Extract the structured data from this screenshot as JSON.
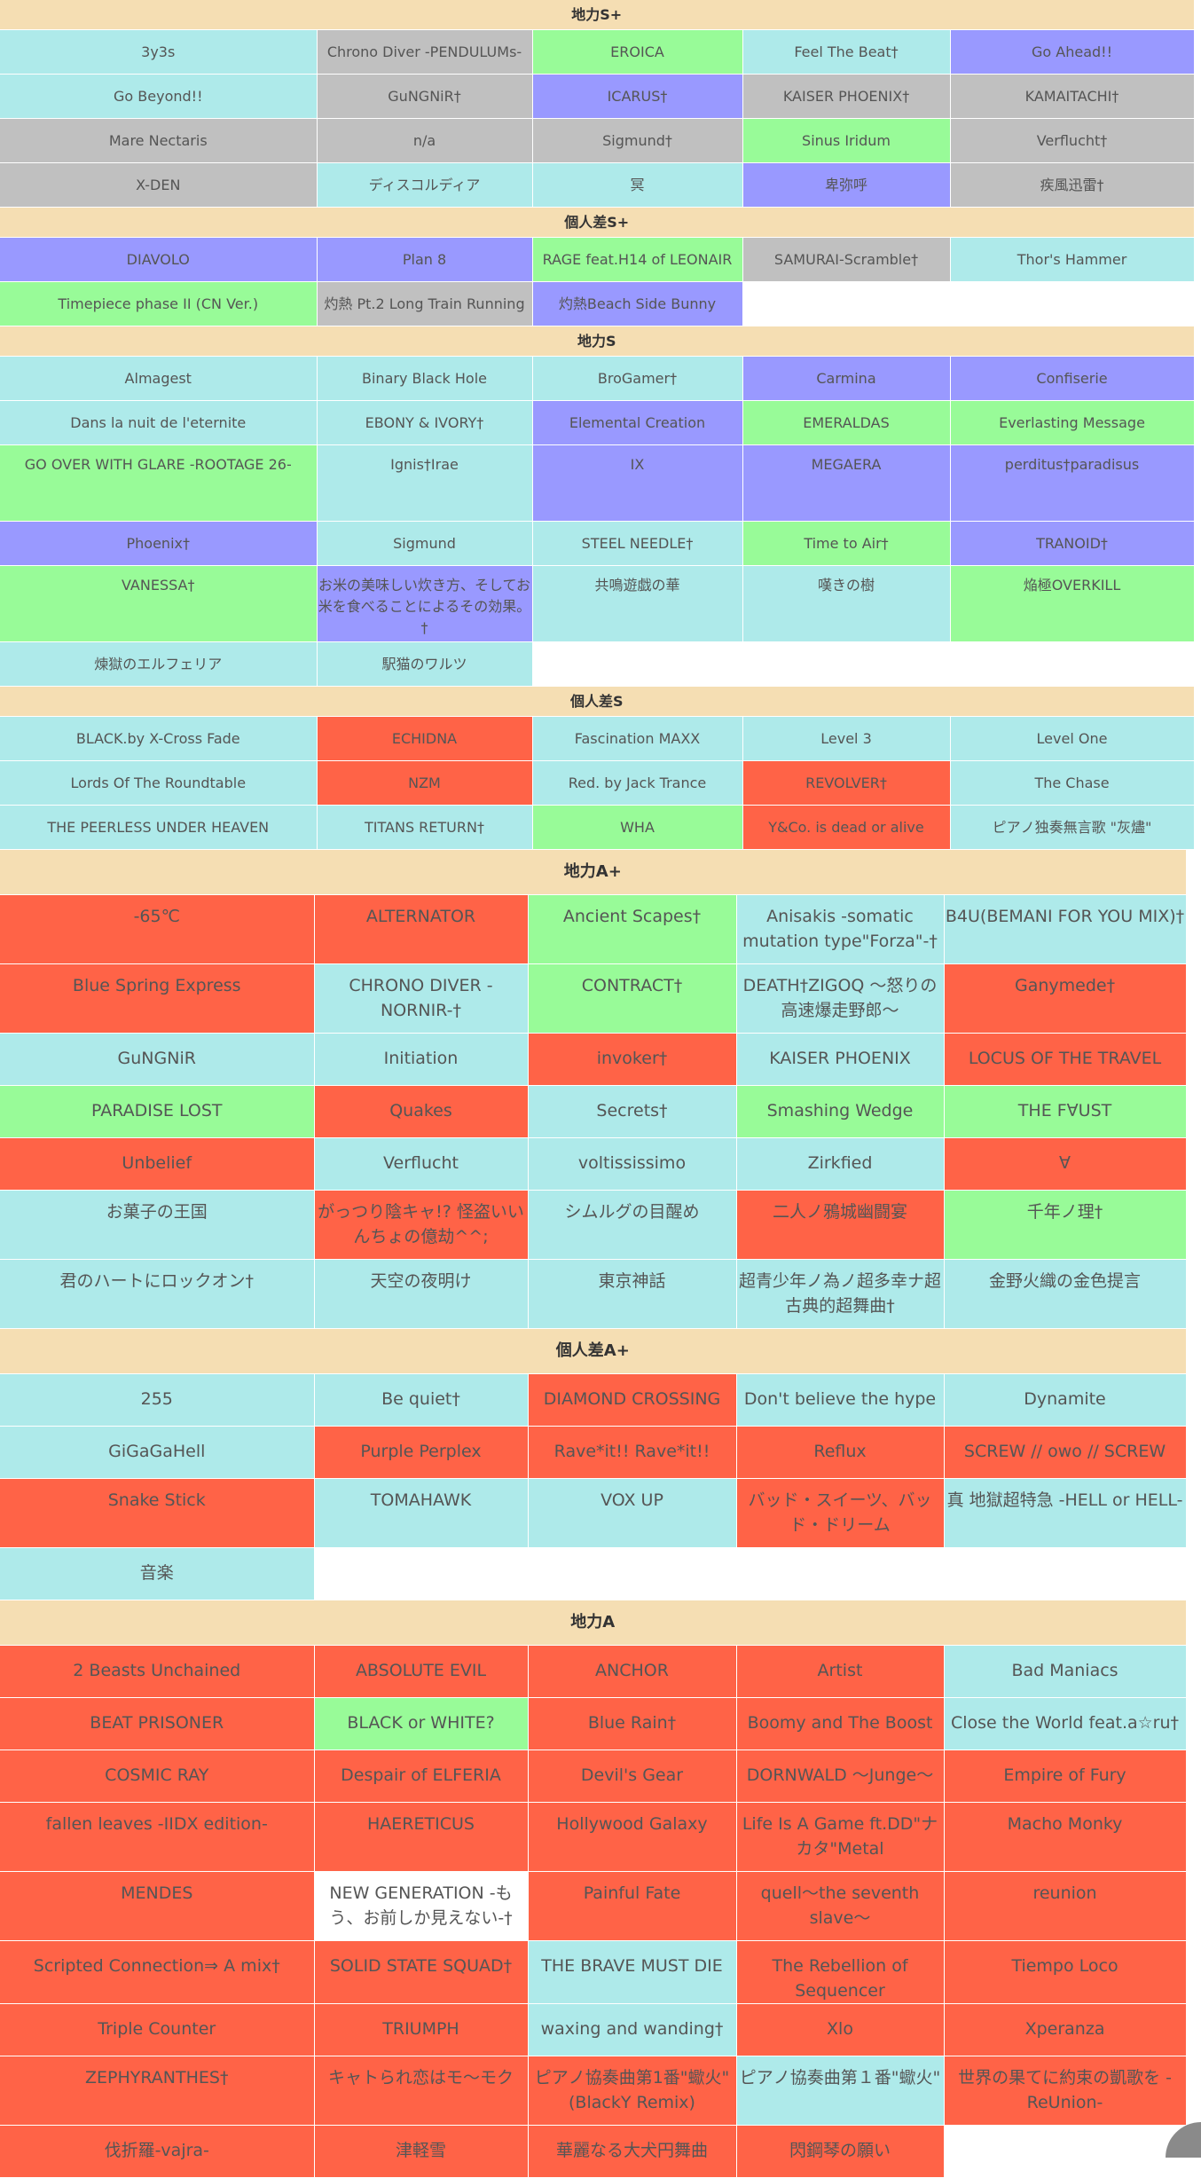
{
  "sections_top": [
    {
      "title": "地力S+",
      "rows": [
        [
          {
            "t": "3y3s",
            "c": "blue"
          },
          {
            "t": "Chrono Diver -PENDULUMs-",
            "c": "grey"
          },
          {
            "t": "EROICA",
            "c": "green"
          },
          {
            "t": "Feel The Beat†",
            "c": "blue"
          },
          {
            "t": "Go Ahead!!",
            "c": "purple"
          }
        ],
        [
          {
            "t": "Go Beyond!!",
            "c": "blue"
          },
          {
            "t": "GuNGNiR†",
            "c": "grey"
          },
          {
            "t": "ICARUS†",
            "c": "purple"
          },
          {
            "t": "KAISER PHOENIX†",
            "c": "grey"
          },
          {
            "t": "KAMAITACHI†",
            "c": "grey"
          }
        ],
        [
          {
            "t": "Mare Nectaris",
            "c": "grey"
          },
          {
            "t": "n/a",
            "c": "grey"
          },
          {
            "t": "Sigmund†",
            "c": "grey"
          },
          {
            "t": "Sinus Iridum",
            "c": "green"
          },
          {
            "t": "Verflucht†",
            "c": "grey"
          }
        ],
        [
          {
            "t": "X-DEN",
            "c": "grey"
          },
          {
            "t": "ディスコルディア",
            "c": "blue"
          },
          {
            "t": "冥",
            "c": "blue"
          },
          {
            "t": "卑弥呼",
            "c": "purple"
          },
          {
            "t": "疾風迅雷†",
            "c": "grey"
          }
        ]
      ]
    },
    {
      "title": "個人差S+",
      "rows": [
        [
          {
            "t": "DIAVOLO",
            "c": "purple"
          },
          {
            "t": "Plan 8",
            "c": "purple"
          },
          {
            "t": "RAGE feat.H14 of LEONAIR",
            "c": "green"
          },
          {
            "t": "SAMURAI-Scramble†",
            "c": "grey"
          },
          {
            "t": "Thor's Hammer",
            "c": "blue"
          }
        ],
        [
          {
            "t": "Timepiece phase II (CN Ver.)",
            "c": "green"
          },
          {
            "t": "灼熱 Pt.2 Long Train Running",
            "c": "grey"
          },
          {
            "t": "灼熱Beach Side Bunny",
            "c": "purple"
          },
          {
            "t": "",
            "c": "empty"
          },
          {
            "t": "",
            "c": "empty"
          }
        ]
      ]
    },
    {
      "title": "地力S",
      "rows": [
        [
          {
            "t": "Almagest",
            "c": "blue"
          },
          {
            "t": "Binary Black Hole",
            "c": "blue"
          },
          {
            "t": "BroGamer†",
            "c": "blue"
          },
          {
            "t": "Carmina",
            "c": "purple"
          },
          {
            "t": "Confiserie",
            "c": "purple"
          }
        ],
        [
          {
            "t": "Dans la nuit de l'eternite",
            "c": "blue"
          },
          {
            "t": "EBONY & IVORY†",
            "c": "blue"
          },
          {
            "t": "Elemental Creation",
            "c": "purple"
          },
          {
            "t": "EMERALDAS",
            "c": "green"
          },
          {
            "t": "Everlasting Message",
            "c": "green"
          }
        ],
        [
          {
            "t": "GO OVER WITH GLARE -ROOTAGE 26-",
            "c": "green"
          },
          {
            "t": "Ignis†Irae",
            "c": "blue"
          },
          {
            "t": "IX",
            "c": "purple"
          },
          {
            "t": "MEGAERA",
            "c": "purple"
          },
          {
            "t": "perditus†paradisus",
            "c": "purple"
          }
        ],
        [
          {
            "t": "Phoenix†",
            "c": "purple"
          },
          {
            "t": "Sigmund",
            "c": "blue"
          },
          {
            "t": "STEEL NEEDLE†",
            "c": "blue"
          },
          {
            "t": "Time to Air†",
            "c": "green"
          },
          {
            "t": "TRANOID†",
            "c": "purple"
          }
        ],
        [
          {
            "t": "VANESSA†",
            "c": "green"
          },
          {
            "t": "お米の美味しい炊き方、そしてお米を食べることによるその効果。†",
            "c": "purple"
          },
          {
            "t": "共鳴遊戯の華",
            "c": "blue"
          },
          {
            "t": "嘆きの樹",
            "c": "blue"
          },
          {
            "t": "焔極OVERKILL",
            "c": "green"
          }
        ],
        [
          {
            "t": "煉獄のエルフェリア",
            "c": "blue"
          },
          {
            "t": "駅猫のワルツ",
            "c": "blue"
          },
          {
            "t": "",
            "c": "empty"
          },
          {
            "t": "",
            "c": "empty"
          },
          {
            "t": "",
            "c": "empty"
          }
        ]
      ]
    },
    {
      "title": "個人差S",
      "rows": [
        [
          {
            "t": "BLACK.by X-Cross Fade",
            "c": "blue"
          },
          {
            "t": "ECHIDNA",
            "c": "red"
          },
          {
            "t": "Fascination MAXX",
            "c": "blue"
          },
          {
            "t": "Level 3",
            "c": "blue"
          },
          {
            "t": "Level One",
            "c": "blue"
          }
        ],
        [
          {
            "t": "Lords Of The Roundtable",
            "c": "blue"
          },
          {
            "t": "NZM",
            "c": "red"
          },
          {
            "t": "Red. by Jack Trance",
            "c": "blue"
          },
          {
            "t": "REVOLVER†",
            "c": "red"
          },
          {
            "t": "The Chase",
            "c": "blue"
          }
        ],
        [
          {
            "t": "THE PEERLESS UNDER HEAVEN",
            "c": "blue"
          },
          {
            "t": "TITANS RETURN†",
            "c": "blue"
          },
          {
            "t": "WHA",
            "c": "green"
          },
          {
            "t": "Y&Co. is dead or alive",
            "c": "red"
          },
          {
            "t": "ピアノ独奏無言歌 \"灰燼\"",
            "c": "blue"
          }
        ]
      ]
    }
  ],
  "sections_bottom": [
    {
      "title": "地力A+",
      "rows": [
        [
          {
            "t": "-65℃",
            "c": "red"
          },
          {
            "t": "ALTERNATOR",
            "c": "red"
          },
          {
            "t": "Ancient Scapes†",
            "c": "green"
          },
          {
            "t": "Anisakis -somatic mutation type\"Forza\"-†",
            "c": "blue"
          },
          {
            "t": "B4U(BEMANI FOR YOU MIX)†",
            "c": "blue"
          }
        ],
        [
          {
            "t": "Blue Spring Express",
            "c": "red"
          },
          {
            "t": "CHRONO DIVER -NORNIR-†",
            "c": "blue"
          },
          {
            "t": "CONTRACT†",
            "c": "green"
          },
          {
            "t": "DEATH†ZIGOQ ～怒りの高速爆走野郎～",
            "c": "blue"
          },
          {
            "t": "Ganymede†",
            "c": "red"
          }
        ],
        [
          {
            "t": "GuNGNiR",
            "c": "blue"
          },
          {
            "t": "Initiation",
            "c": "blue"
          },
          {
            "t": "invoker†",
            "c": "red"
          },
          {
            "t": "KAISER PHOENIX",
            "c": "blue"
          },
          {
            "t": "LOCUS OF THE TRAVEL",
            "c": "red"
          }
        ],
        [
          {
            "t": "PARADISE LOST",
            "c": "green"
          },
          {
            "t": "Quakes",
            "c": "red"
          },
          {
            "t": "Secrets†",
            "c": "blue"
          },
          {
            "t": "Smashing Wedge",
            "c": "green"
          },
          {
            "t": "THE F∀UST",
            "c": "green"
          }
        ],
        [
          {
            "t": "Unbelief",
            "c": "red"
          },
          {
            "t": "Verflucht",
            "c": "blue"
          },
          {
            "t": "voltississimo",
            "c": "blue"
          },
          {
            "t": "Zirkfied",
            "c": "blue"
          },
          {
            "t": "∀",
            "c": "red"
          }
        ],
        [
          {
            "t": "お菓子の王国",
            "c": "blue"
          },
          {
            "t": "がっつり陰キャ!? 怪盗いいんちょの億劫^^;",
            "c": "red"
          },
          {
            "t": "シムルグの目醒め",
            "c": "blue"
          },
          {
            "t": "二人ノ鴉城幽闘宴",
            "c": "red"
          },
          {
            "t": "千年ノ理†",
            "c": "green"
          }
        ],
        [
          {
            "t": "君のハートにロックオン†",
            "c": "blue"
          },
          {
            "t": "天空の夜明け",
            "c": "blue"
          },
          {
            "t": "東京神話",
            "c": "blue"
          },
          {
            "t": "超青少年ノ為ノ超多幸ナ超古典的超舞曲†",
            "c": "blue"
          },
          {
            "t": "金野火織の金色提言",
            "c": "blue"
          }
        ]
      ]
    },
    {
      "title": "個人差A+",
      "rows": [
        [
          {
            "t": "255",
            "c": "blue"
          },
          {
            "t": "Be quiet†",
            "c": "blue"
          },
          {
            "t": "DIAMOND CROSSING",
            "c": "red"
          },
          {
            "t": "Don't believe the hype",
            "c": "blue"
          },
          {
            "t": "Dynamite",
            "c": "blue"
          }
        ],
        [
          {
            "t": "GiGaGaHell",
            "c": "blue"
          },
          {
            "t": "Purple Perplex",
            "c": "red"
          },
          {
            "t": "Rave*it!! Rave*it!!",
            "c": "red"
          },
          {
            "t": "Reflux",
            "c": "red"
          },
          {
            "t": "SCREW // owo // SCREW",
            "c": "red"
          }
        ],
        [
          {
            "t": "Snake Stick",
            "c": "red"
          },
          {
            "t": "TOMAHAWK",
            "c": "blue"
          },
          {
            "t": "VOX UP",
            "c": "blue"
          },
          {
            "t": "バッド・スイーツ、バッド・ドリーム",
            "c": "red"
          },
          {
            "t": "真 地獄超特急 -HELL or HELL-",
            "c": "blue"
          }
        ],
        [
          {
            "t": "音楽",
            "c": "blue"
          },
          {
            "t": "",
            "c": "empty"
          },
          {
            "t": "",
            "c": "empty"
          },
          {
            "t": "",
            "c": "empty"
          },
          {
            "t": "",
            "c": "empty"
          }
        ]
      ]
    },
    {
      "title": "地力A",
      "rows": [
        [
          {
            "t": "2 Beasts Unchained",
            "c": "red"
          },
          {
            "t": "ABSOLUTE EVIL",
            "c": "red"
          },
          {
            "t": "ANCHOR",
            "c": "red"
          },
          {
            "t": "Artist",
            "c": "red"
          },
          {
            "t": "Bad Maniacs",
            "c": "blue"
          }
        ],
        [
          {
            "t": "BEAT PRISONER",
            "c": "red"
          },
          {
            "t": "BLACK or WHITE?",
            "c": "green"
          },
          {
            "t": "Blue Rain†",
            "c": "red"
          },
          {
            "t": "Boomy and The Boost",
            "c": "red"
          },
          {
            "t": "Close the World feat.a☆ru†",
            "c": "blue"
          }
        ],
        [
          {
            "t": "COSMIC RAY",
            "c": "red"
          },
          {
            "t": "Despair of ELFERIA",
            "c": "red"
          },
          {
            "t": "Devil's Gear",
            "c": "red"
          },
          {
            "t": "DORNWALD ～Junge～",
            "c": "red"
          },
          {
            "t": "Empire of Fury",
            "c": "red"
          }
        ],
        [
          {
            "t": "fallen leaves -IIDX edition-",
            "c": "red"
          },
          {
            "t": "HAERETICUS",
            "c": "red"
          },
          {
            "t": "Hollywood Galaxy",
            "c": "red"
          },
          {
            "t": "Life Is A Game ft.DD\"ナカタ\"Metal",
            "c": "red"
          },
          {
            "t": "Macho Monky",
            "c": "red"
          }
        ],
        [
          {
            "t": "MENDES",
            "c": "red"
          },
          {
            "t": "NEW GENERATION -もう、お前しか見えない-†",
            "c": "white"
          },
          {
            "t": "Painful Fate",
            "c": "red"
          },
          {
            "t": "quell～the seventh slave～",
            "c": "red"
          },
          {
            "t": "reunion",
            "c": "red"
          }
        ],
        [
          {
            "t": "Scripted Connection⇒ A mix†",
            "c": "red"
          },
          {
            "t": "SOLID STATE SQUAD†",
            "c": "red"
          },
          {
            "t": "THE BRAVE MUST DIE",
            "c": "blue"
          },
          {
            "t": "The Rebellion of Sequencer",
            "c": "red"
          },
          {
            "t": "Tiempo Loco",
            "c": "red"
          }
        ],
        [
          {
            "t": "Triple Counter",
            "c": "red"
          },
          {
            "t": "TRIUMPH",
            "c": "red"
          },
          {
            "t": "waxing and wanding†",
            "c": "blue"
          },
          {
            "t": "Xlo",
            "c": "red"
          },
          {
            "t": "Xperanza",
            "c": "red"
          }
        ],
        [
          {
            "t": "ZEPHYRANTHES†",
            "c": "red"
          },
          {
            "t": "キャトられ恋はモ～モク",
            "c": "red"
          },
          {
            "t": "ピアノ協奏曲第1番\"蠍火\" (BlackY Remix)",
            "c": "red"
          },
          {
            "t": "ピアノ協奏曲第１番\"蠍火\"",
            "c": "blue"
          },
          {
            "t": "世界の果てに約束の凱歌を -ReUnion-",
            "c": "red"
          }
        ],
        [
          {
            "t": "伐折羅-vajra-",
            "c": "red"
          },
          {
            "t": "津軽雪",
            "c": "red"
          },
          {
            "t": "華麗なる大犬円舞曲",
            "c": "red"
          },
          {
            "t": "閃鋼琴の願い",
            "c": "red"
          },
          {
            "t": "",
            "c": "empty"
          }
        ]
      ]
    }
  ]
}
